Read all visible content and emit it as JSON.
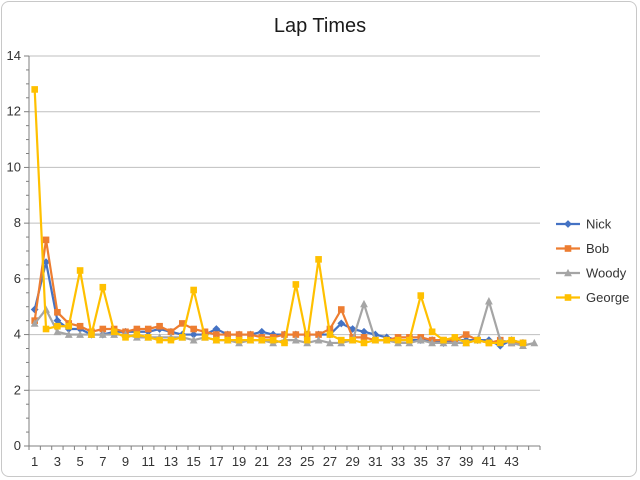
{
  "chart_data": {
    "type": "line",
    "title": "Lap Times",
    "xlabel": "",
    "ylabel": "",
    "ylim": [
      0,
      14
    ],
    "y_ticks": [
      "0",
      "2",
      "4",
      "6",
      "8",
      "10",
      "12",
      "14"
    ],
    "x_tick_labels": [
      "1",
      "3",
      "5",
      "7",
      "9",
      "11",
      "13",
      "15",
      "17",
      "19",
      "21",
      "23",
      "25",
      "27",
      "29",
      "31",
      "33",
      "35",
      "37",
      "39",
      "41",
      "43"
    ],
    "x": [
      1,
      2,
      3,
      4,
      5,
      6,
      7,
      8,
      9,
      10,
      11,
      12,
      13,
      14,
      15,
      16,
      17,
      18,
      19,
      20,
      21,
      22,
      23,
      24,
      25,
      26,
      27,
      28,
      29,
      30,
      31,
      32,
      33,
      34,
      35,
      36,
      37,
      38,
      39,
      40,
      41,
      42,
      43,
      44,
      45
    ],
    "grid": "horizontal",
    "legend_position": "right",
    "series": [
      {
        "name": "Nick",
        "color": "#4472C4",
        "marker": "diamond",
        "values": [
          4.9,
          6.6,
          4.5,
          4.2,
          4.2,
          4.0,
          4.0,
          4.1,
          4.1,
          4.1,
          4.1,
          4.2,
          4.1,
          4.0,
          4.0,
          4.0,
          4.2,
          4.0,
          4.0,
          4.0,
          4.1,
          4.0,
          4.0,
          4.0,
          4.0,
          4.0,
          4.0,
          4.4,
          4.2,
          4.1,
          4.0,
          3.9,
          3.8,
          3.8,
          3.8,
          3.8,
          3.7,
          3.8,
          3.8,
          3.8,
          3.8,
          3.6,
          3.8,
          3.7,
          null
        ]
      },
      {
        "name": "Bob",
        "color": "#ED7D31",
        "marker": "square",
        "values": [
          4.5,
          7.4,
          4.8,
          4.4,
          4.3,
          4.1,
          4.2,
          4.2,
          4.1,
          4.2,
          4.2,
          4.3,
          4.1,
          4.4,
          4.2,
          4.1,
          4.0,
          4.0,
          4.0,
          4.0,
          3.9,
          3.9,
          4.0,
          4.0,
          4.0,
          4.0,
          4.2,
          4.9,
          3.9,
          3.9,
          3.8,
          3.8,
          3.9,
          3.9,
          3.9,
          3.8,
          3.8,
          3.8,
          4.0,
          3.8,
          3.7,
          3.8,
          3.7,
          3.7,
          null
        ]
      },
      {
        "name": "Woody",
        "color": "#A5A5A5",
        "marker": "triangle",
        "values": [
          4.4,
          4.9,
          4.1,
          4.0,
          4.0,
          4.0,
          4.0,
          4.0,
          4.0,
          3.9,
          3.9,
          3.9,
          3.9,
          3.9,
          3.8,
          3.9,
          3.8,
          3.8,
          3.7,
          3.8,
          3.8,
          3.7,
          3.8,
          3.8,
          3.7,
          3.8,
          3.7,
          3.7,
          3.8,
          5.1,
          3.8,
          3.8,
          3.7,
          3.7,
          3.8,
          3.7,
          3.7,
          3.7,
          3.7,
          3.8,
          5.2,
          3.8,
          3.7,
          3.6,
          3.7
        ]
      },
      {
        "name": "George",
        "color": "#FFC000",
        "marker": "square",
        "values": [
          12.8,
          4.2,
          4.3,
          4.3,
          6.3,
          4.0,
          5.7,
          4.1,
          3.9,
          4.0,
          3.9,
          3.8,
          3.8,
          3.9,
          5.6,
          3.9,
          3.8,
          3.8,
          3.8,
          3.8,
          3.8,
          3.8,
          3.7,
          5.8,
          3.8,
          6.7,
          4.0,
          3.8,
          3.8,
          3.7,
          3.8,
          3.8,
          3.8,
          3.8,
          5.4,
          4.1,
          3.8,
          3.9,
          3.7,
          3.8,
          3.7,
          3.7,
          3.8,
          3.7,
          null
        ]
      }
    ]
  }
}
